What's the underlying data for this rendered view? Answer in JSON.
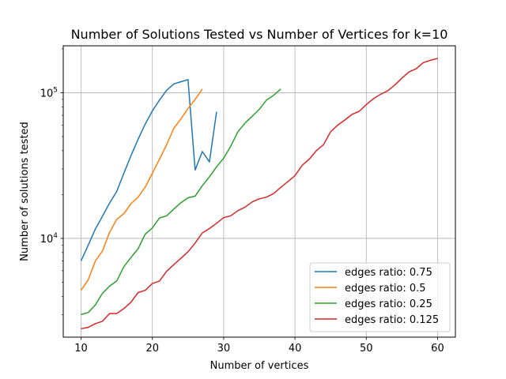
{
  "chart_data": {
    "type": "line",
    "title": "Number of Solutions Tested vs Number of Vertices for k=10",
    "xlabel": "Number of vertices",
    "ylabel": "Number of solutions tested",
    "yscale": "log",
    "xlim": [
      7.5,
      62.5
    ],
    "ylim": [
      2100,
      210000
    ],
    "grid": true,
    "legend_position": "lower-right",
    "x_ticks": [
      10,
      20,
      30,
      40,
      50,
      60
    ],
    "x_tick_labels": [
      "10",
      "20",
      "30",
      "40",
      "50",
      "60"
    ],
    "y_ticks": [
      10000,
      100000
    ],
    "y_tick_labels": [
      "10^4",
      "10^5"
    ],
    "series": [
      {
        "name": "edges ratio: 0.75",
        "color": "#1f77b4",
        "x": [
          10,
          11,
          12,
          13,
          14,
          15,
          16,
          17,
          18,
          19,
          20,
          21,
          22,
          23,
          24,
          25,
          26,
          27,
          28,
          29
        ],
        "y": [
          7000,
          9000,
          11600,
          14200,
          17500,
          21000,
          28000,
          37000,
          48000,
          61000,
          75000,
          89000,
          104000,
          115000,
          119000,
          123000,
          29500,
          39500,
          33500,
          74000
        ]
      },
      {
        "name": "edges ratio: 0.5",
        "color": "#ff7f0e",
        "x": [
          10,
          11,
          12,
          13,
          14,
          15,
          16,
          17,
          18,
          19,
          20,
          21,
          22,
          23,
          24,
          25,
          26,
          27
        ],
        "y": [
          4400,
          5200,
          7000,
          8200,
          11000,
          13500,
          14800,
          17300,
          19200,
          22500,
          28000,
          35000,
          44000,
          57000,
          66000,
          78000,
          90000,
          106000
        ]
      },
      {
        "name": "edges ratio: 0.25",
        "color": "#2ca02c",
        "x": [
          10,
          11,
          12,
          13,
          14,
          15,
          16,
          17,
          18,
          19,
          20,
          21,
          22,
          23,
          24,
          25,
          26,
          27,
          28,
          29,
          30,
          31,
          32,
          33,
          34,
          35,
          36,
          37,
          38
        ],
        "y": [
          3000,
          3100,
          3500,
          4200,
          4700,
          5100,
          6400,
          7400,
          8500,
          10700,
          11800,
          13800,
          14300,
          15900,
          17600,
          19000,
          19500,
          23000,
          26500,
          31000,
          35500,
          43000,
          54000,
          62000,
          69000,
          77000,
          89000,
          96000,
          106000
        ]
      },
      {
        "name": "edges ratio: 0.125",
        "color": "#d62728",
        "x": [
          10,
          11,
          12,
          13,
          14,
          15,
          16,
          17,
          18,
          19,
          20,
          21,
          22,
          23,
          24,
          25,
          26,
          27,
          28,
          29,
          30,
          31,
          32,
          33,
          34,
          35,
          36,
          37,
          38,
          39,
          40,
          41,
          42,
          43,
          44,
          45,
          46,
          47,
          48,
          49,
          50,
          51,
          52,
          53,
          54,
          55,
          56,
          57,
          58,
          59,
          60
        ],
        "y": [
          2400,
          2450,
          2600,
          2700,
          3050,
          3050,
          3300,
          3650,
          4250,
          4400,
          4900,
          5100,
          5950,
          6600,
          7300,
          8100,
          9300,
          10900,
          11700,
          12700,
          13900,
          14300,
          15500,
          16400,
          17800,
          18700,
          19200,
          20300,
          22400,
          24500,
          27000,
          31700,
          35000,
          40000,
          44000,
          54000,
          60000,
          65000,
          71000,
          74500,
          83000,
          91000,
          97500,
          103000,
          113000,
          126000,
          139000,
          146000,
          161000,
          167000,
          172000
        ]
      }
    ]
  }
}
